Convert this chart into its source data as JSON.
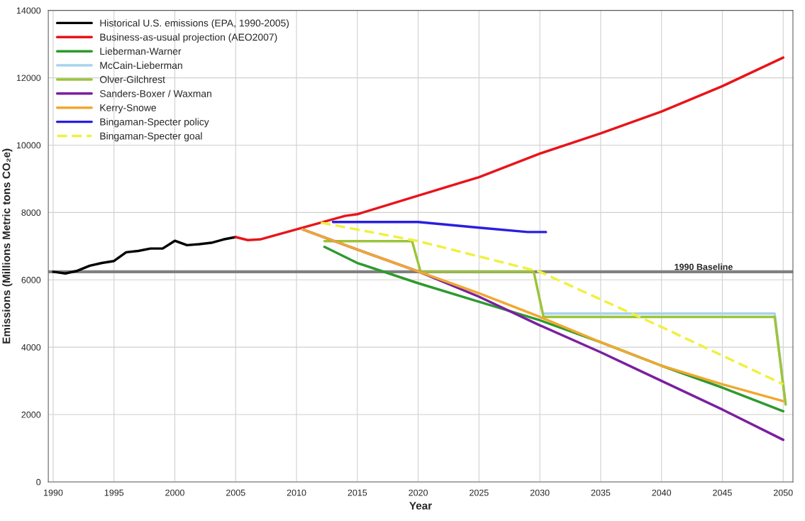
{
  "chart_data": {
    "type": "line",
    "xlabel": "Year",
    "ylabel": "Emissions (Millions Metric tons CO₂e)",
    "xlim": [
      1989.6,
      2050.8
    ],
    "xticks": [
      1990,
      1995,
      2000,
      2005,
      2010,
      2015,
      2020,
      2025,
      2030,
      2035,
      2040,
      2045,
      2050
    ],
    "ylim": [
      0,
      14000
    ],
    "yticks": [
      0,
      2000,
      4000,
      6000,
      8000,
      10000,
      12000,
      14000
    ],
    "grid": true,
    "legend": "top left",
    "ref_lines": [
      {
        "axis": "y",
        "value": 6240,
        "label": "1990 Baseline",
        "color": "#808080"
      }
    ],
    "series": [
      {
        "name": "Historical U.S. emissions (EPA, 1990-2005)",
        "color": "#000000",
        "x": [
          1990,
          1991,
          1992,
          1993,
          1994,
          1995,
          1996,
          1997,
          1998,
          1999,
          2000,
          2001,
          2002,
          2003,
          2004,
          2005
        ],
        "values": [
          6240,
          6190,
          6270,
          6420,
          6500,
          6560,
          6820,
          6860,
          6930,
          6930,
          7160,
          7030,
          7060,
          7100,
          7200,
          7270
        ]
      },
      {
        "name": "Business-as-usual projection (AEO2007)",
        "color": "#e8141a",
        "x": [
          2005,
          2006,
          2007,
          2008,
          2009,
          2010,
          2012,
          2014,
          2015,
          2020,
          2025,
          2030,
          2035,
          2040,
          2045,
          2050
        ],
        "values": [
          7270,
          7180,
          7200,
          7300,
          7400,
          7500,
          7700,
          7900,
          7950,
          8500,
          9050,
          9750,
          10350,
          11000,
          11750,
          12600
        ]
      },
      {
        "name": "Lieberman-Warner",
        "color": "#2e9a2e",
        "x": [
          2012.3,
          2015,
          2020,
          2025,
          2030,
          2035,
          2040,
          2045,
          2050
        ],
        "values": [
          6980,
          6500,
          5900,
          5350,
          4800,
          4150,
          3450,
          2800,
          2100
        ]
      },
      {
        "name": "McCain-Lieberman",
        "color": "#a8d4ec",
        "x": [
          2030.3,
          2049.3,
          2050.2
        ],
        "values": [
          5000,
          5000,
          2300
        ]
      },
      {
        "name": "Olver-Gilchrest",
        "color": "#9cc43a",
        "x": [
          2012.3,
          2019.5,
          2020.2,
          2029.5,
          2030.3,
          2049.3,
          2050.2
        ],
        "values": [
          7150,
          7150,
          6240,
          6240,
          4900,
          4900,
          2300
        ]
      },
      {
        "name": "Sanders-Boxer / Waxman",
        "color": "#7a1fa0",
        "x": [
          2010.5,
          2015,
          2020,
          2025,
          2030,
          2035,
          2040,
          2045,
          2050
        ],
        "values": [
          7500,
          6900,
          6250,
          5500,
          4650,
          3850,
          3000,
          2150,
          1250
        ]
      },
      {
        "name": "Kerry-Snowe",
        "color": "#f0a830",
        "x": [
          2010.5,
          2015,
          2020,
          2025,
          2030,
          2035,
          2040,
          2045,
          2050
        ],
        "values": [
          7500,
          6900,
          6250,
          5600,
          4900,
          4150,
          3450,
          2900,
          2400
        ]
      },
      {
        "name": "Bingaman-Specter policy",
        "color": "#2a1ee0",
        "x": [
          2013,
          2016,
          2020,
          2025,
          2029,
          2030.5
        ],
        "values": [
          7720,
          7720,
          7720,
          7550,
          7420,
          7420
        ]
      },
      {
        "name": "Bingaman-Specter goal",
        "color": "#f0f040",
        "line_style": "dashed",
        "x": [
          2012,
          2020,
          2030,
          2040,
          2050
        ],
        "values": [
          7700,
          7150,
          6240,
          4600,
          2900
        ]
      }
    ]
  }
}
